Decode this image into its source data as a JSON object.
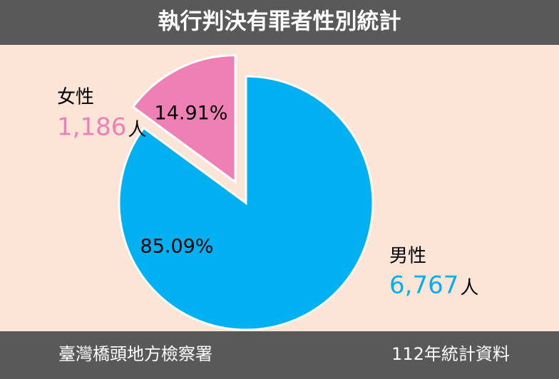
{
  "chart_data": {
    "type": "pie",
    "title": "執行判決有罪者性別統計",
    "categories": [
      "男性",
      "女性"
    ],
    "values": [
      6767,
      1186
    ],
    "value_labels": [
      "6,767",
      "1,186"
    ],
    "unit": "人",
    "percent_values": [
      85.09,
      14.91
    ],
    "percent_labels": [
      "85.09%",
      "14.91%"
    ],
    "colors": [
      "#00b0f0",
      "#ef80b6"
    ],
    "source": "臺灣橋頭地方檢察署",
    "note": "112年統計資料"
  }
}
